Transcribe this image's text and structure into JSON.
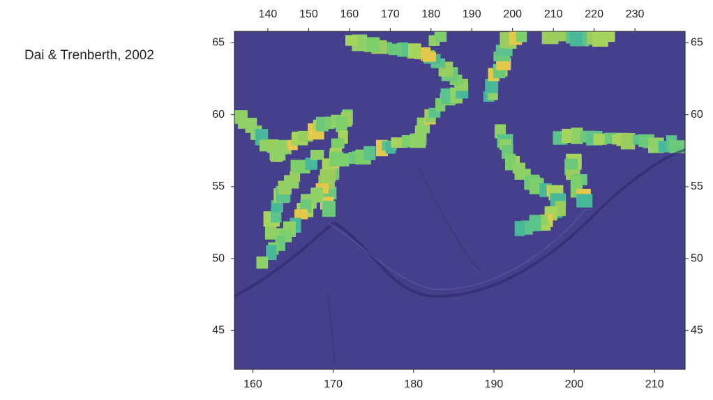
{
  "chart_data": {
    "type": "map",
    "title": "Dai & Trenberth, 2002",
    "xlim": [
      157.7,
      213.8
    ],
    "xticks": [
      160,
      170,
      180,
      190,
      200,
      210
    ],
    "x2lim": [
      131.8,
      242.3
    ],
    "x2ticks": [
      140,
      150,
      160,
      170,
      180,
      190,
      200,
      210,
      220,
      230
    ],
    "ylim": [
      42.3,
      65.8
    ],
    "yticks": [
      45,
      50,
      55,
      60,
      65
    ],
    "y2lim": [
      42.3,
      65.8
    ],
    "y2ticks": [
      45,
      50,
      55,
      60,
      65
    ],
    "background": "#453f8c"
  }
}
